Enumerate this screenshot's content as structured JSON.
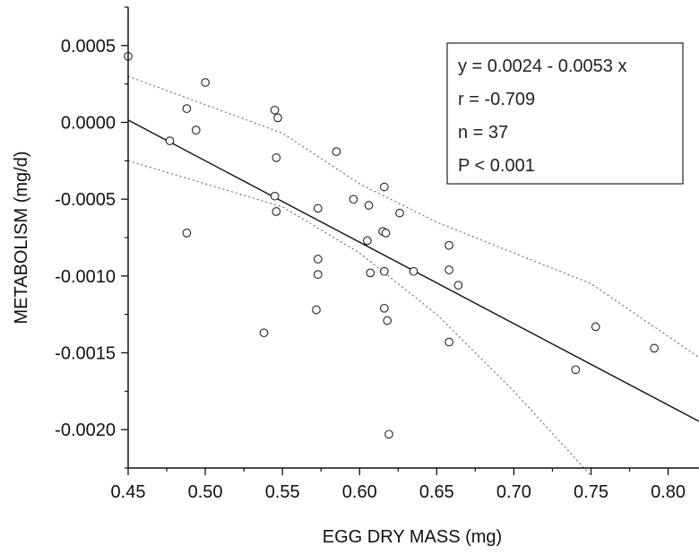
{
  "chart_data": {
    "type": "scatter",
    "title": "",
    "xlabel": "EGG DRY MASS (mg)",
    "ylabel": "METABOLISM (mg/d)",
    "xlim": [
      0.45,
      0.82
    ],
    "ylim": [
      -0.00225,
      0.00075
    ],
    "x_ticks": [
      0.45,
      0.5,
      0.55,
      0.6,
      0.65,
      0.7,
      0.75,
      0.8
    ],
    "x_tick_labels": [
      "0.45",
      "0.50",
      "0.55",
      "0.60",
      "0.65",
      "0.70",
      "0.75",
      "0.80"
    ],
    "y_ticks": [
      0.0005,
      0.0,
      -0.0005,
      -0.001,
      -0.0015,
      -0.002
    ],
    "y_tick_labels": [
      "0.0005",
      "0.0000",
      "-0.0005",
      "-0.0010",
      "-0.0015",
      "-0.0020"
    ],
    "grid": false,
    "legend": "none",
    "annotation_lines": [
      "y = 0.0024 - 0.0053 x",
      "r = -0.709",
      "n = 37",
      "P < 0.001"
    ],
    "annotation_position": "top-right",
    "regression": {
      "intercept": 0.0024,
      "slope": -0.0053
    },
    "confidence_band": {
      "upper": [
        [
          0.45,
          0.0003
        ],
        [
          0.55,
          -7e-05
        ],
        [
          0.6,
          -0.0004
        ],
        [
          0.65,
          -0.00065
        ],
        [
          0.7,
          -0.00085
        ],
        [
          0.75,
          -0.00105
        ],
        [
          0.82,
          -0.00153
        ]
      ],
      "lower": [
        [
          0.45,
          -0.00025
        ],
        [
          0.55,
          -0.00055
        ],
        [
          0.6,
          -0.00085
        ],
        [
          0.65,
          -0.00125
        ],
        [
          0.7,
          -0.00175
        ],
        [
          0.75,
          -0.0023
        ]
      ]
    },
    "series": [
      {
        "points": [
          [
            0.45,
            0.00043
          ],
          [
            0.477,
            -0.00012
          ],
          [
            0.488,
            9e-05
          ],
          [
            0.488,
            -0.00072
          ],
          [
            0.494,
            -5e-05
          ],
          [
            0.5,
            0.00026
          ],
          [
            0.538,
            -0.00137
          ],
          [
            0.545,
            8e-05
          ],
          [
            0.545,
            -0.00048
          ],
          [
            0.546,
            -0.00023
          ],
          [
            0.546,
            -0.00058
          ],
          [
            0.547,
            3e-05
          ],
          [
            0.572,
            -0.00122
          ],
          [
            0.573,
            -0.00056
          ],
          [
            0.573,
            -0.00089
          ],
          [
            0.573,
            -0.00099
          ],
          [
            0.585,
            -0.00019
          ],
          [
            0.596,
            -0.0005
          ],
          [
            0.605,
            -0.00077
          ],
          [
            0.606,
            -0.00054
          ],
          [
            0.607,
            -0.00098
          ],
          [
            0.615,
            -0.00071
          ],
          [
            0.616,
            -0.00042
          ],
          [
            0.616,
            -0.00097
          ],
          [
            0.616,
            -0.00121
          ],
          [
            0.617,
            -0.00072
          ],
          [
            0.618,
            -0.00129
          ],
          [
            0.619,
            -0.00203
          ],
          [
            0.626,
            -0.00059
          ],
          [
            0.635,
            -0.00097
          ],
          [
            0.658,
            -0.0008
          ],
          [
            0.658,
            -0.00096
          ],
          [
            0.658,
            -0.00143
          ],
          [
            0.664,
            -0.00106
          ],
          [
            0.74,
            -0.00161
          ],
          [
            0.753,
            -0.00133
          ],
          [
            0.791,
            -0.00147
          ]
        ]
      }
    ]
  }
}
